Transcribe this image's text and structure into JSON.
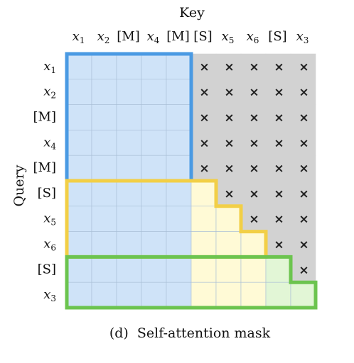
{
  "diagram": {
    "key_axis_label": "Key",
    "query_axis_label": "Query",
    "key_tokens": [
      [
        "x",
        "1"
      ],
      [
        "x",
        "2"
      ],
      [
        "[M]",
        ""
      ],
      [
        "x",
        "4"
      ],
      [
        "[M]",
        ""
      ],
      [
        "[S]",
        ""
      ],
      [
        "x",
        "5"
      ],
      [
        "x",
        "6"
      ],
      [
        "[S]",
        ""
      ],
      [
        "x",
        "3"
      ]
    ],
    "query_tokens": [
      [
        "x",
        "1"
      ],
      [
        "x",
        "2"
      ],
      [
        "[M]",
        ""
      ],
      [
        "x",
        "4"
      ],
      [
        "[M]",
        ""
      ],
      [
        "[S]",
        ""
      ],
      [
        "x",
        "5"
      ],
      [
        "x",
        "6"
      ],
      [
        "[S]",
        ""
      ],
      [
        "x",
        "3"
      ]
    ],
    "masked_marker": "×",
    "caption": "(d)  Self-attention mask",
    "colors": {
      "blue_fill": "#cfe3f8",
      "yellow_fill": "#fffad6",
      "green_fill": "#e2f6d6",
      "masked_fill": "#d2d2d2",
      "grid_line": "#a9bfd6",
      "blue_border": "#4a9ae3",
      "yellow_border": "#f2cf46",
      "green_border": "#6cc44f"
    },
    "mask": [
      [
        "B",
        "B",
        "B",
        "B",
        "B",
        "X",
        "X",
        "X",
        "X",
        "X"
      ],
      [
        "B",
        "B",
        "B",
        "B",
        "B",
        "X",
        "X",
        "X",
        "X",
        "X"
      ],
      [
        "B",
        "B",
        "B",
        "B",
        "B",
        "X",
        "X",
        "X",
        "X",
        "X"
      ],
      [
        "B",
        "B",
        "B",
        "B",
        "B",
        "X",
        "X",
        "X",
        "X",
        "X"
      ],
      [
        "B",
        "B",
        "B",
        "B",
        "B",
        "X",
        "X",
        "X",
        "X",
        "X"
      ],
      [
        "B",
        "B",
        "B",
        "B",
        "B",
        "Y",
        "X",
        "X",
        "X",
        "X"
      ],
      [
        "B",
        "B",
        "B",
        "B",
        "B",
        "Y",
        "Y",
        "X",
        "X",
        "X"
      ],
      [
        "B",
        "B",
        "B",
        "B",
        "B",
        "Y",
        "Y",
        "Y",
        "X",
        "X"
      ],
      [
        "B",
        "B",
        "B",
        "B",
        "B",
        "Y",
        "Y",
        "Y",
        "G",
        "X"
      ],
      [
        "B",
        "B",
        "B",
        "B",
        "B",
        "Y",
        "Y",
        "Y",
        "G",
        "G"
      ]
    ]
  }
}
